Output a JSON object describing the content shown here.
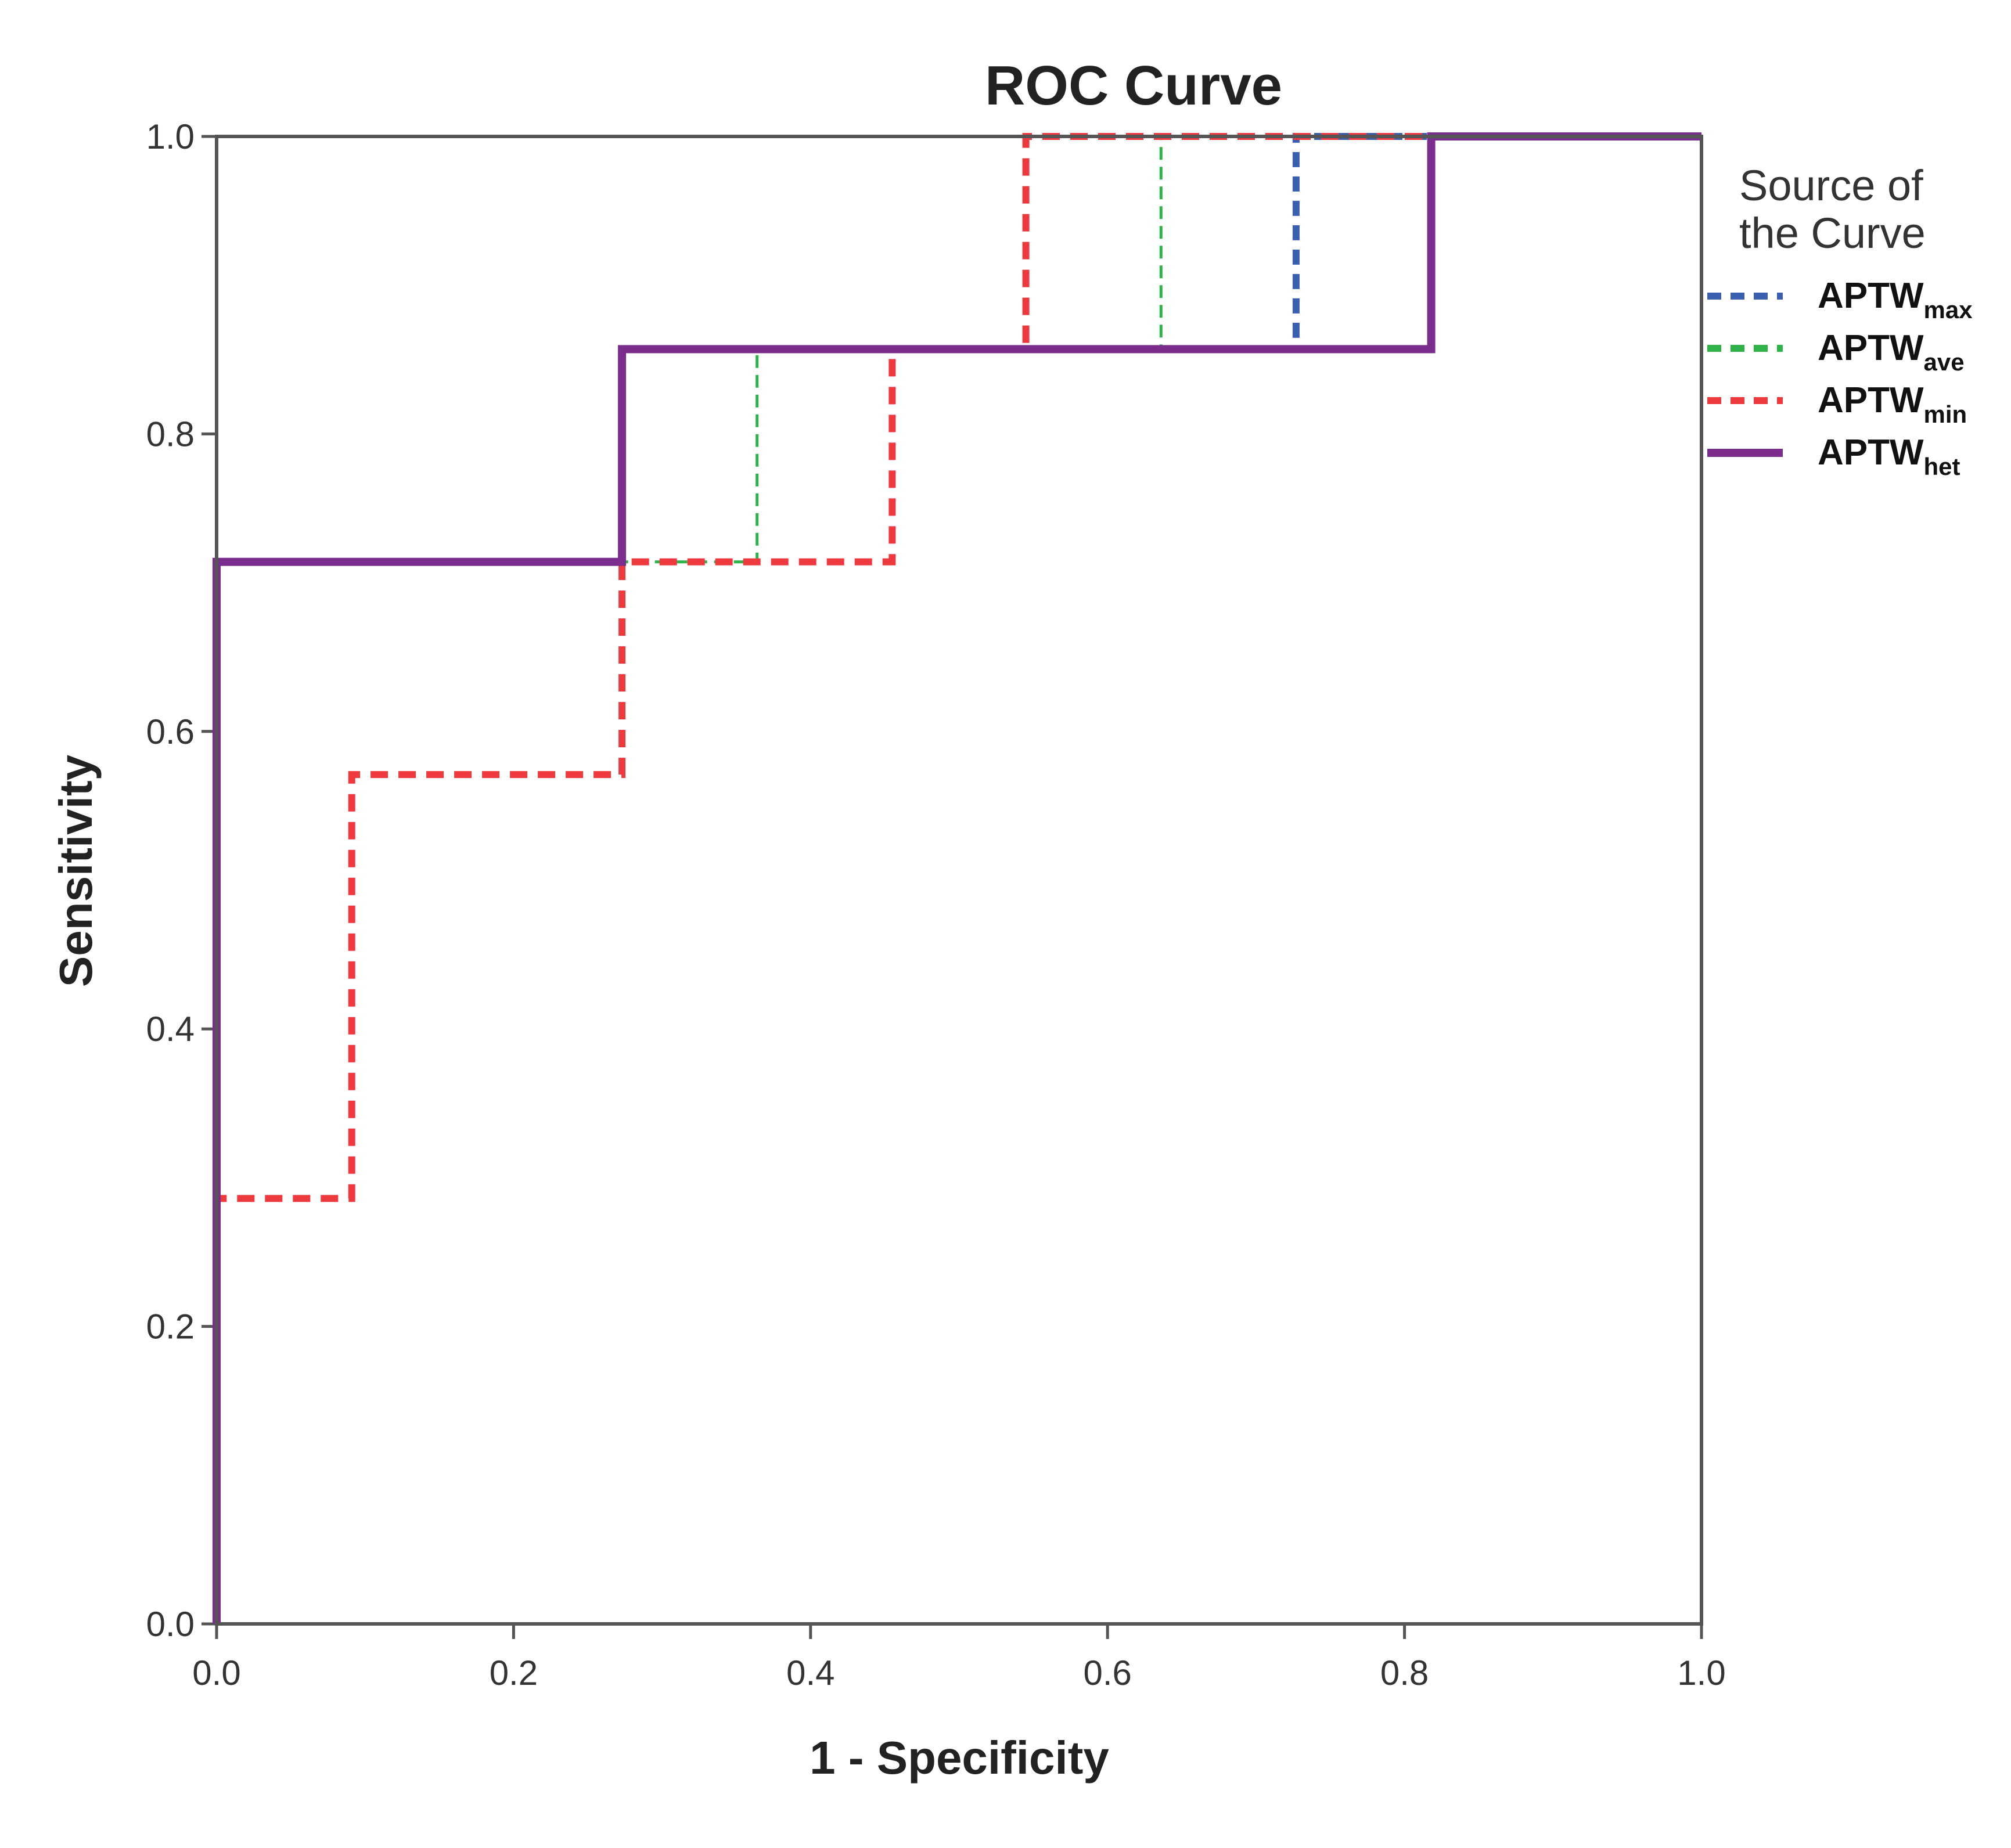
{
  "chart_data": {
    "type": "line",
    "title": "ROC Curve",
    "xlabel": "1 - Specificity",
    "ylabel": "Sensitivity",
    "xlim": [
      0.0,
      1.0
    ],
    "ylim": [
      0.0,
      1.0
    ],
    "x_ticks": [
      "0.0",
      "0.2",
      "0.4",
      "0.6",
      "0.8",
      "1.0"
    ],
    "y_ticks": [
      "0.0",
      "0.2",
      "0.4",
      "0.6",
      "0.8",
      "1.0"
    ],
    "grid": false,
    "legend": {
      "title_line1": "Source of",
      "title_line2": "the Curve",
      "placement": "right"
    },
    "series": [
      {
        "name": "APTWmax",
        "base": "APTW",
        "sub": "max",
        "color": "#3a5fb0",
        "style": "dashed",
        "x": [
          0.0,
          0.0,
          0.273,
          0.273,
          0.727,
          0.727,
          1.0
        ],
        "y": [
          0.0,
          0.714,
          0.714,
          0.857,
          0.857,
          1.0,
          1.0
        ]
      },
      {
        "name": "APTWave",
        "base": "APTW",
        "sub": "ave",
        "color": "#2db34a",
        "style": "dashed",
        "x": [
          0.0,
          0.0,
          0.273,
          0.273,
          0.364,
          0.364,
          0.636,
          0.636,
          1.0
        ],
        "y": [
          0.0,
          0.714,
          0.714,
          0.714,
          0.714,
          0.857,
          0.857,
          1.0,
          1.0
        ]
      },
      {
        "name": "APTWmin",
        "base": "APTW",
        "sub": "min",
        "color": "#ee3a3f",
        "style": "dashed",
        "x": [
          0.0,
          0.0,
          0.091,
          0.091,
          0.273,
          0.273,
          0.455,
          0.455,
          0.545,
          0.545,
          1.0
        ],
        "y": [
          0.0,
          0.286,
          0.286,
          0.571,
          0.571,
          0.714,
          0.714,
          0.857,
          0.857,
          1.0,
          1.0
        ]
      },
      {
        "name": "APTWhet",
        "base": "APTW",
        "sub": "het",
        "color": "#7b2d8e",
        "style": "solid",
        "x": [
          0.0,
          0.0,
          0.273,
          0.273,
          0.818,
          0.818,
          1.0
        ],
        "y": [
          0.0,
          0.714,
          0.714,
          0.857,
          0.857,
          1.0,
          1.0
        ]
      }
    ]
  }
}
